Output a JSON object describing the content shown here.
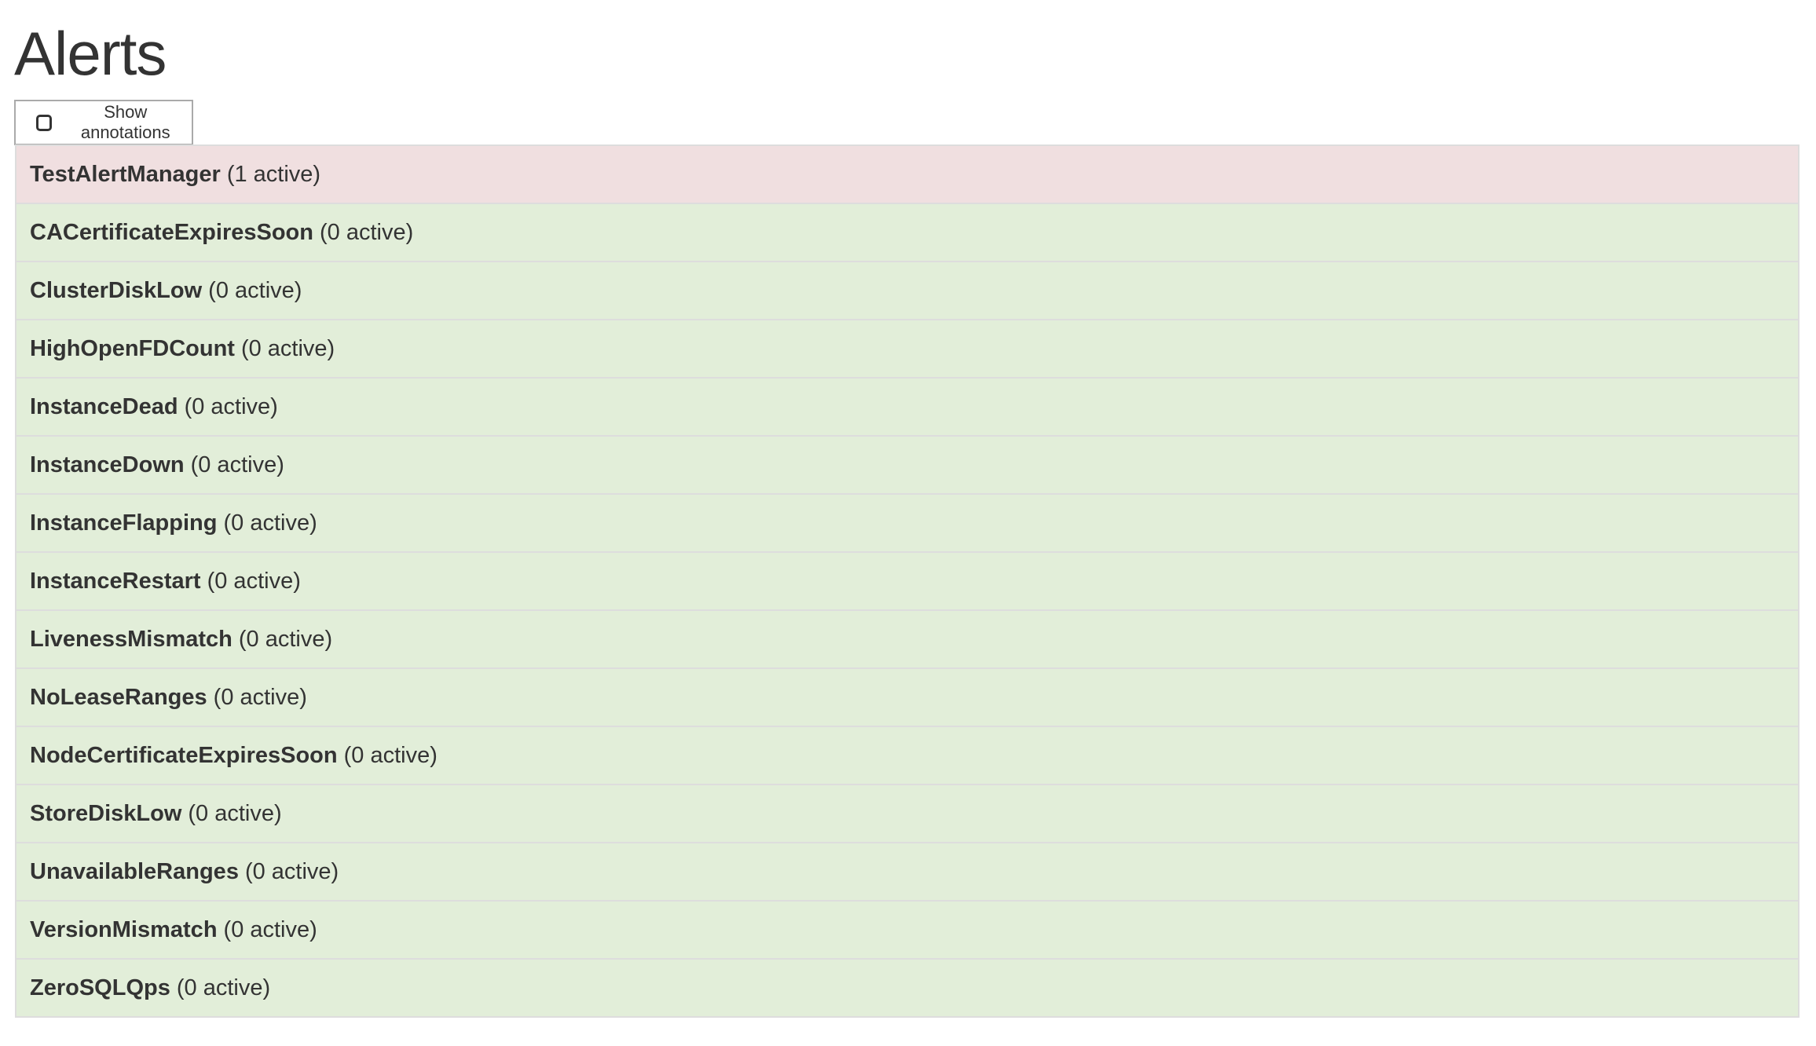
{
  "page": {
    "title": "Alerts"
  },
  "controls": {
    "show_annotations_label": "Show annotations",
    "show_annotations_checked": false
  },
  "colors": {
    "firing": "#f0dfe0",
    "inactive": "#e2eed9",
    "border": "#dddddd",
    "text": "#333333"
  },
  "alerts": [
    {
      "name": "TestAlertManager",
      "count": "(1 active)",
      "state": "firing"
    },
    {
      "name": "CACertificateExpiresSoon",
      "count": "(0 active)",
      "state": "inactive"
    },
    {
      "name": "ClusterDiskLow",
      "count": "(0 active)",
      "state": "inactive"
    },
    {
      "name": "HighOpenFDCount",
      "count": "(0 active)",
      "state": "inactive"
    },
    {
      "name": "InstanceDead",
      "count": "(0 active)",
      "state": "inactive"
    },
    {
      "name": "InstanceDown",
      "count": "(0 active)",
      "state": "inactive"
    },
    {
      "name": "InstanceFlapping",
      "count": "(0 active)",
      "state": "inactive"
    },
    {
      "name": "InstanceRestart",
      "count": "(0 active)",
      "state": "inactive"
    },
    {
      "name": "LivenessMismatch",
      "count": "(0 active)",
      "state": "inactive"
    },
    {
      "name": "NoLeaseRanges",
      "count": "(0 active)",
      "state": "inactive"
    },
    {
      "name": "NodeCertificateExpiresSoon",
      "count": "(0 active)",
      "state": "inactive"
    },
    {
      "name": "StoreDiskLow",
      "count": "(0 active)",
      "state": "inactive"
    },
    {
      "name": "UnavailableRanges",
      "count": "(0 active)",
      "state": "inactive"
    },
    {
      "name": "VersionMismatch",
      "count": "(0 active)",
      "state": "inactive"
    },
    {
      "name": "ZeroSQLQps",
      "count": "(0 active)",
      "state": "inactive"
    }
  ]
}
